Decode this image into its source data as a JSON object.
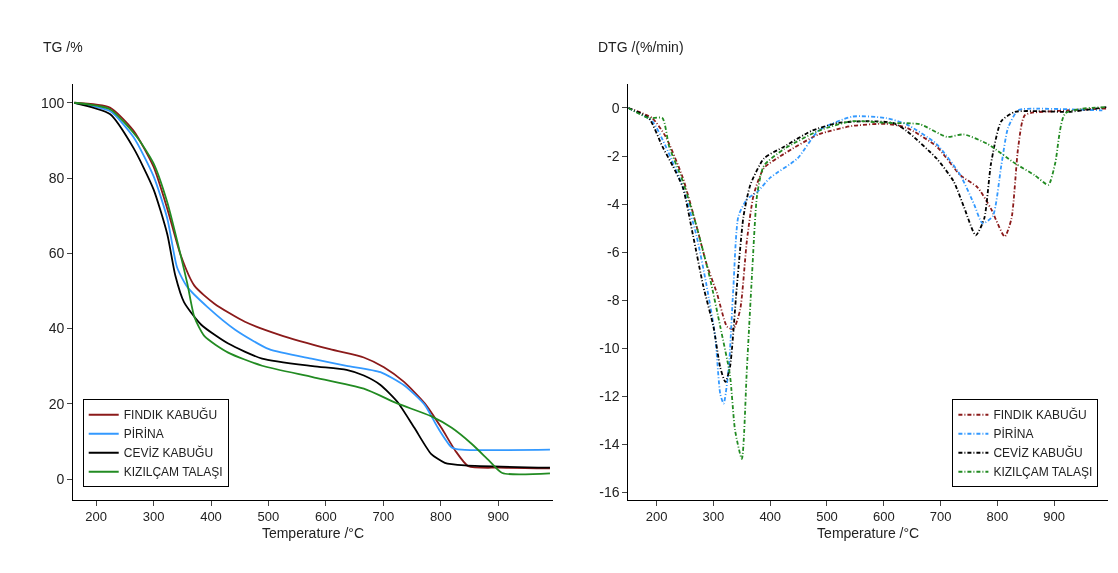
{
  "chart_data": [
    {
      "type": "line",
      "ylabel": "TG /%",
      "xlabel": "Temperature /°C",
      "xlim": [
        160,
        995
      ],
      "ylim": [
        -5.5,
        105
      ],
      "xticks": [
        200,
        300,
        400,
        500,
        600,
        700,
        800,
        900
      ],
      "yticks": [
        0,
        20,
        40,
        60,
        80,
        100
      ],
      "legend": "bottom left",
      "line_style": "solid",
      "series": [
        {
          "name": "FINDIK KABUĞU",
          "color": "#8b1a1a",
          "x": [
            162,
            224,
            265,
            300,
            324,
            347,
            371,
            406,
            459,
            518,
            607,
            666,
            701,
            736,
            772,
            801,
            825,
            848,
            901,
            990
          ],
          "values": [
            100,
            98.7,
            92.6,
            83,
            71.8,
            59.6,
            51.4,
            46.6,
            41.8,
            38.4,
            34.5,
            32.3,
            29.7,
            25.8,
            20.1,
            13.6,
            7.6,
            3.4,
            3.0,
            2.8
          ]
        },
        {
          "name": "PİRİNA",
          "color": "#3399ff",
          "x": [
            162,
            224,
            265,
            300,
            324,
            341,
            359,
            394,
            442,
            501,
            577,
            636,
            695,
            736,
            772,
            795,
            819,
            836,
            990
          ],
          "values": [
            100,
            97.8,
            90.9,
            80.5,
            69.2,
            56.2,
            51,
            45.7,
            39.7,
            34.5,
            31.9,
            30.1,
            28.4,
            24.9,
            19.7,
            13.6,
            8.4,
            7.8,
            7.8
          ]
        },
        {
          "name": "CEVİZ KABUĞU",
          "color": "#000000",
          "x": [
            162,
            224,
            265,
            300,
            324,
            338,
            353,
            383,
            430,
            489,
            577,
            636,
            666,
            695,
            724,
            754,
            783,
            807,
            842,
            990
          ],
          "values": [
            100,
            97,
            88,
            77,
            65,
            54,
            47,
            41,
            36,
            32,
            30,
            29,
            27.5,
            25,
            20.6,
            13.6,
            6.7,
            4.3,
            3.6,
            3.0
          ]
        },
        {
          "name": "KIZILÇAM TALAŞI",
          "color": "#228b22",
          "x": [
            162,
            224,
            271,
            300,
            324,
            347,
            359,
            371,
            389,
            430,
            489,
            577,
            666,
            724,
            783,
            819,
            854,
            884,
            907,
            990
          ],
          "values": [
            100,
            98.3,
            90.9,
            83.9,
            73.5,
            59.6,
            51.8,
            43.1,
            37.9,
            33.6,
            30.1,
            27.1,
            24.0,
            20.1,
            16.7,
            13.6,
            9.3,
            4.9,
            1.6,
            1.5
          ]
        }
      ]
    },
    {
      "type": "line",
      "ylabel": "DTG /(%/min)",
      "xlabel": "Temperature /°C",
      "xlim": [
        150,
        995
      ],
      "ylim": [
        -16.3,
        1
      ],
      "xticks": [
        200,
        300,
        400,
        500,
        600,
        700,
        800,
        900
      ],
      "yticks": [
        0,
        -2,
        -4,
        -6,
        -8,
        -10,
        -12,
        -14,
        -16
      ],
      "legend": "bottom right",
      "line_style": "dashed",
      "series": [
        {
          "name": "FINDIK KABUĞU",
          "color": "#8b1a1a",
          "x": [
            150,
            192,
            216,
            246,
            270,
            288,
            306,
            324,
            335,
            347,
            359,
            371,
            389,
            425,
            485,
            544,
            604,
            640,
            693,
            735,
            765,
            789,
            813,
            825,
            837,
            849,
            902,
            992
          ],
          "values": [
            0,
            -0.42,
            -1.2,
            -2.9,
            -4.9,
            -6.5,
            -7.7,
            -9.1,
            -9.2,
            -8.4,
            -5.5,
            -3.6,
            -2.5,
            -1.9,
            -1.1,
            -0.75,
            -0.66,
            -0.82,
            -1.6,
            -2.8,
            -3.3,
            -4.2,
            -5.35,
            -4.6,
            -1.6,
            -0.29,
            -0.13,
            -0.02
          ]
        },
        {
          "name": "PİRİNA",
          "color": "#3399ff",
          "x": [
            150,
            192,
            216,
            246,
            270,
            288,
            303,
            312,
            318,
            327,
            335,
            344,
            359,
            377,
            400,
            448,
            485,
            544,
            604,
            640,
            693,
            735,
            759,
            774,
            792,
            807,
            819,
            837,
            872,
            985
          ],
          "values": [
            0,
            -0.55,
            -1.6,
            -3.3,
            -5.3,
            -7.4,
            -9.5,
            -11.9,
            -12.3,
            -10.8,
            -7.5,
            -4.5,
            -3.8,
            -3.5,
            -2.9,
            -2.1,
            -0.95,
            -0.36,
            -0.42,
            -0.68,
            -1.5,
            -2.8,
            -4.0,
            -4.8,
            -4.5,
            -2.4,
            -0.82,
            -0.09,
            -0.03,
            -0.1
          ]
        },
        {
          "name": "CEVİZ KABUĞU",
          "color": "#000000",
          "x": [
            150,
            186,
            210,
            228,
            246,
            264,
            282,
            300,
            312,
            321,
            329,
            341,
            353,
            365,
            389,
            425,
            473,
            520,
            574,
            616,
            640,
            693,
            723,
            741,
            762,
            777,
            789,
            807,
            831,
            872,
            926,
            992
          ],
          "values": [
            0,
            -0.42,
            -1.6,
            -2.4,
            -3.3,
            -5.3,
            -7.4,
            -9.1,
            -10.8,
            -11.4,
            -10.8,
            -7.5,
            -4.5,
            -3.2,
            -2.1,
            -1.6,
            -0.95,
            -0.62,
            -0.55,
            -0.62,
            -0.95,
            -2.1,
            -3.05,
            -4.1,
            -5.3,
            -4.6,
            -2.3,
            -0.55,
            -0.16,
            -0.13,
            -0.16,
            0.04
          ]
        },
        {
          "name": "KIZILÇAM TALAŞI",
          "color": "#228b22",
          "x": [
            150,
            186,
            210,
            222,
            246,
            270,
            294,
            312,
            329,
            338,
            350,
            359,
            368,
            377,
            389,
            425,
            485,
            544,
            604,
            664,
            711,
            741,
            783,
            831,
            866,
            890,
            902,
            920,
            992
          ],
          "values": [
            0,
            -0.42,
            -0.42,
            -1.6,
            -3.05,
            -4.9,
            -7.1,
            -9.1,
            -11.1,
            -13.4,
            -14.6,
            -10.8,
            -6.9,
            -3.6,
            -2.4,
            -1.7,
            -0.95,
            -0.55,
            -0.62,
            -0.68,
            -1.2,
            -1.1,
            -1.5,
            -2.3,
            -2.8,
            -3.2,
            -2.3,
            -0.22,
            0.04
          ]
        }
      ]
    }
  ]
}
